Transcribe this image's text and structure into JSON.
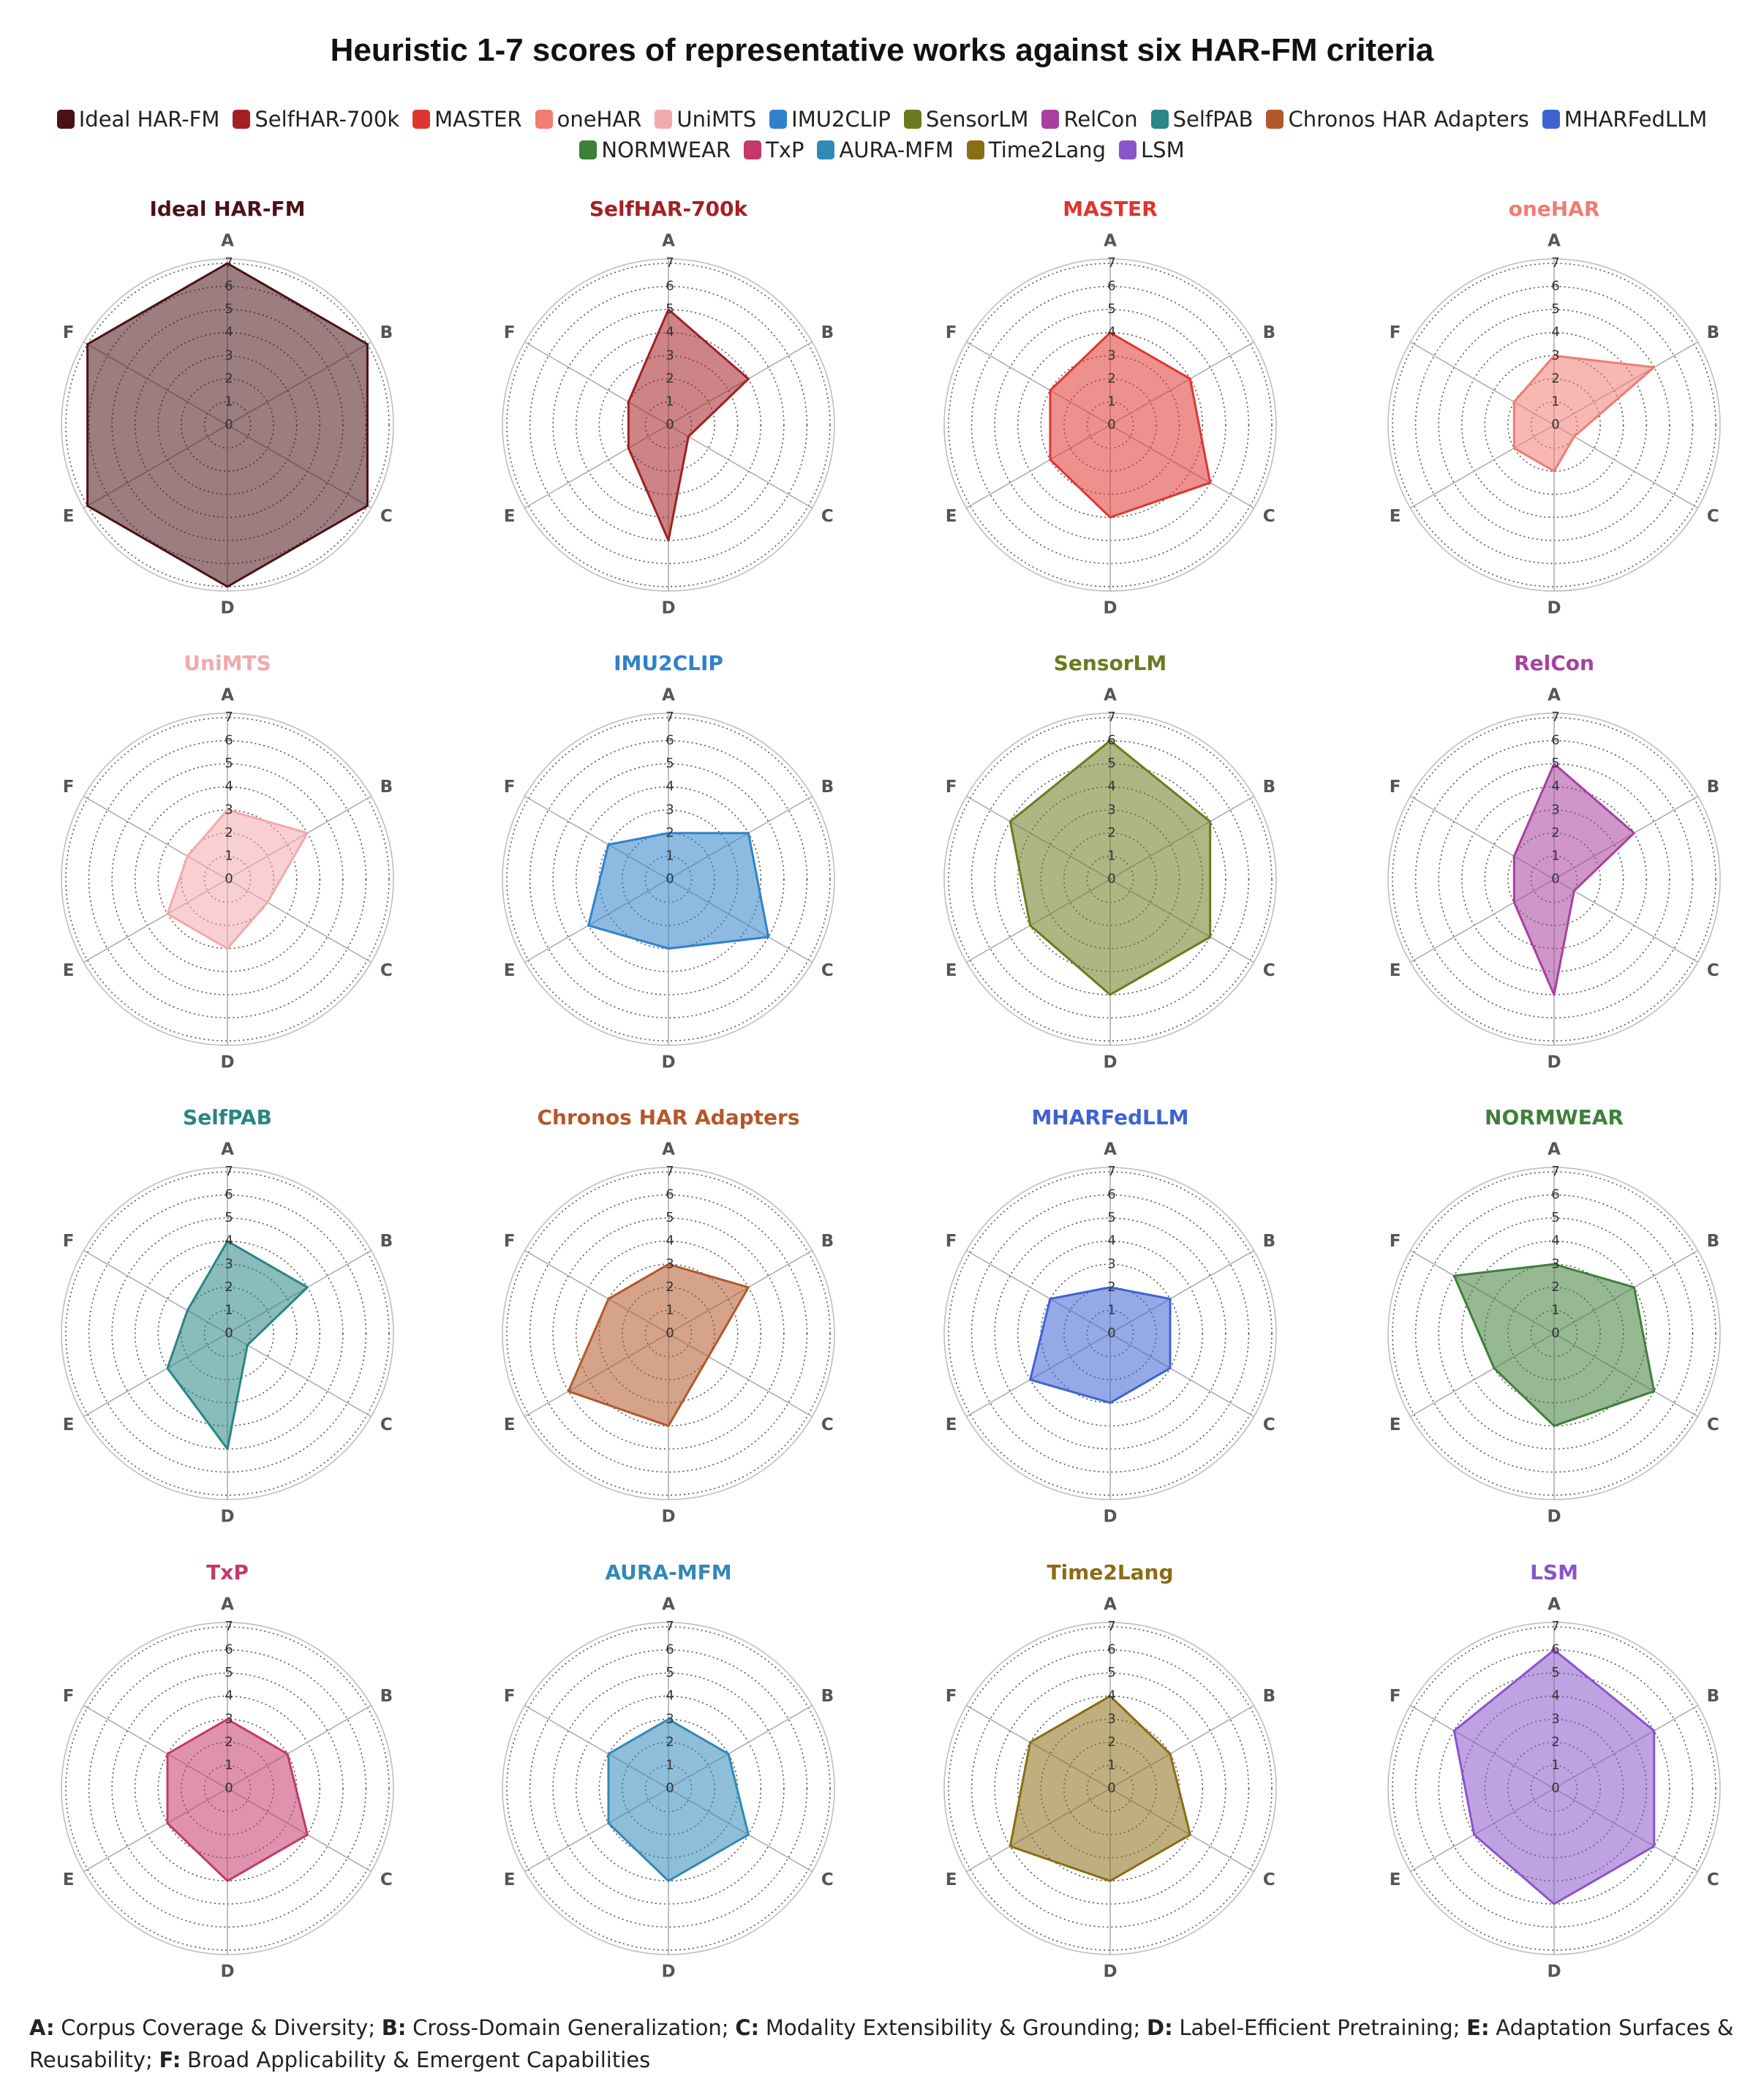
{
  "title": "Heuristic 1-7 scores of representative works against six HAR-FM criteria",
  "footnote": [
    {
      "key": "A:",
      "text": "Corpus Coverage & Diversity;"
    },
    {
      "key": "B:",
      "text": "Cross-Domain Generalization;"
    },
    {
      "key": "C:",
      "text": "Modality Extensibility & Grounding;"
    },
    {
      "key": "D:",
      "text": "Label-Efficient Pretraining;"
    },
    {
      "key": "E:",
      "text": "Adaptation Surfaces & Reusability;"
    },
    {
      "key": "F:",
      "text": "Broad Applicability & Emergent Capabilities"
    }
  ],
  "chart_data": [
    {
      "type": "radar",
      "title": "Ideal HAR-FM",
      "color": "#4a1218",
      "categories": [
        "A",
        "B",
        "C",
        "D",
        "E",
        "F"
      ],
      "values": [
        7,
        7,
        7,
        7,
        7,
        7
      ],
      "ylim": [
        0,
        7
      ],
      "yticks": [
        0,
        1,
        2,
        3,
        4,
        5,
        6,
        7
      ]
    },
    {
      "type": "radar",
      "title": "SelfHAR-700k",
      "color": "#a31f24",
      "categories": [
        "A",
        "B",
        "C",
        "D",
        "E",
        "F"
      ],
      "values": [
        5,
        4,
        1,
        5,
        2,
        2
      ],
      "ylim": [
        0,
        7
      ],
      "yticks": [
        0,
        1,
        2,
        3,
        4,
        5,
        6,
        7
      ]
    },
    {
      "type": "radar",
      "title": "MASTER",
      "color": "#e0352f",
      "categories": [
        "A",
        "B",
        "C",
        "D",
        "E",
        "F"
      ],
      "values": [
        4,
        4,
        5,
        4,
        3,
        3
      ],
      "ylim": [
        0,
        7
      ],
      "yticks": [
        0,
        1,
        2,
        3,
        4,
        5,
        6,
        7
      ]
    },
    {
      "type": "radar",
      "title": "oneHAR",
      "color": "#f07c72",
      "categories": [
        "A",
        "B",
        "C",
        "D",
        "E",
        "F"
      ],
      "values": [
        3,
        5,
        1,
        2,
        2,
        2
      ],
      "ylim": [
        0,
        7
      ],
      "yticks": [
        0,
        1,
        2,
        3,
        4,
        5,
        6,
        7
      ]
    },
    {
      "type": "radar",
      "title": "UniMTS",
      "color": "#f2a9ac",
      "categories": [
        "A",
        "B",
        "C",
        "D",
        "E",
        "F"
      ],
      "values": [
        3,
        4,
        2,
        3,
        3,
        2
      ],
      "ylim": [
        0,
        7
      ],
      "yticks": [
        0,
        1,
        2,
        3,
        4,
        5,
        6,
        7
      ]
    },
    {
      "type": "radar",
      "title": "IMU2CLIP",
      "color": "#2f82c9",
      "categories": [
        "A",
        "B",
        "C",
        "D",
        "E",
        "F"
      ],
      "values": [
        2,
        4,
        5,
        3,
        4,
        3
      ],
      "ylim": [
        0,
        7
      ],
      "yticks": [
        0,
        1,
        2,
        3,
        4,
        5,
        6,
        7
      ]
    },
    {
      "type": "radar",
      "title": "SensorLM",
      "color": "#6b7a1f",
      "categories": [
        "A",
        "B",
        "C",
        "D",
        "E",
        "F"
      ],
      "values": [
        6,
        5,
        5,
        5,
        4,
        5
      ],
      "ylim": [
        0,
        7
      ],
      "yticks": [
        0,
        1,
        2,
        3,
        4,
        5,
        6,
        7
      ]
    },
    {
      "type": "radar",
      "title": "RelCon",
      "color": "#a8409f",
      "categories": [
        "A",
        "B",
        "C",
        "D",
        "E",
        "F"
      ],
      "values": [
        5,
        4,
        1,
        5,
        2,
        2
      ],
      "ylim": [
        0,
        7
      ],
      "yticks": [
        0,
        1,
        2,
        3,
        4,
        5,
        6,
        7
      ]
    },
    {
      "type": "radar",
      "title": "SelfPAB",
      "color": "#2a8585",
      "categories": [
        "A",
        "B",
        "C",
        "D",
        "E",
        "F"
      ],
      "values": [
        4,
        4,
        1,
        5,
        3,
        2
      ],
      "ylim": [
        0,
        7
      ],
      "yticks": [
        0,
        1,
        2,
        3,
        4,
        5,
        6,
        7
      ]
    },
    {
      "type": "radar",
      "title": "Chronos HAR Adapters",
      "color": "#b3582a",
      "categories": [
        "A",
        "B",
        "C",
        "D",
        "E",
        "F"
      ],
      "values": [
        3,
        4,
        2,
        4,
        5,
        3
      ],
      "ylim": [
        0,
        7
      ],
      "yticks": [
        0,
        1,
        2,
        3,
        4,
        5,
        6,
        7
      ]
    },
    {
      "type": "radar",
      "title": "MHARFedLLM",
      "color": "#3e63d1",
      "categories": [
        "A",
        "B",
        "C",
        "D",
        "E",
        "F"
      ],
      "values": [
        2,
        3,
        3,
        3,
        4,
        3
      ],
      "ylim": [
        0,
        7
      ],
      "yticks": [
        0,
        1,
        2,
        3,
        4,
        5,
        6,
        7
      ]
    },
    {
      "type": "radar",
      "title": "NORMWEAR",
      "color": "#3f7f3c",
      "categories": [
        "A",
        "B",
        "C",
        "D",
        "E",
        "F"
      ],
      "values": [
        3,
        4,
        5,
        4,
        3,
        5
      ],
      "ylim": [
        0,
        7
      ],
      "yticks": [
        0,
        1,
        2,
        3,
        4,
        5,
        6,
        7
      ]
    },
    {
      "type": "radar",
      "title": "TxP",
      "color": "#c4386a",
      "categories": [
        "A",
        "B",
        "C",
        "D",
        "E",
        "F"
      ],
      "values": [
        3,
        3,
        4,
        4,
        3,
        3
      ],
      "ylim": [
        0,
        7
      ],
      "yticks": [
        0,
        1,
        2,
        3,
        4,
        5,
        6,
        7
      ]
    },
    {
      "type": "radar",
      "title": "AURA-MFM",
      "color": "#3189b8",
      "categories": [
        "A",
        "B",
        "C",
        "D",
        "E",
        "F"
      ],
      "values": [
        3,
        3,
        4,
        4,
        3,
        3
      ],
      "ylim": [
        0,
        7
      ],
      "yticks": [
        0,
        1,
        2,
        3,
        4,
        5,
        6,
        7
      ]
    },
    {
      "type": "radar",
      "title": "Time2Lang",
      "color": "#8a6d14",
      "categories": [
        "A",
        "B",
        "C",
        "D",
        "E",
        "F"
      ],
      "values": [
        4,
        3,
        4,
        4,
        5,
        4
      ],
      "ylim": [
        0,
        7
      ],
      "yticks": [
        0,
        1,
        2,
        3,
        4,
        5,
        6,
        7
      ]
    },
    {
      "type": "radar",
      "title": "LSM",
      "color": "#8a55c9",
      "categories": [
        "A",
        "B",
        "C",
        "D",
        "E",
        "F"
      ],
      "values": [
        6,
        5,
        5,
        5,
        4,
        5
      ],
      "ylim": [
        0,
        7
      ],
      "yticks": [
        0,
        1,
        2,
        3,
        4,
        5,
        6,
        7
      ]
    }
  ]
}
